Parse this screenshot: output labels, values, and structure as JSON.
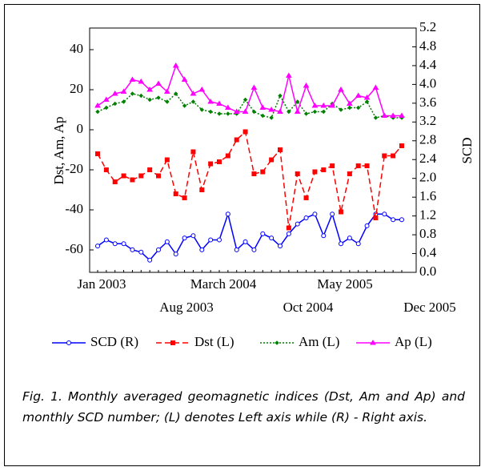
{
  "chart_data": {
    "type": "line",
    "y_label": "Dst, Am, Ap",
    "y2_label": "SCD",
    "caption": "Fig. 1. Monthly averaged geomagnetic indices (Dst, Am and Ap) and monthly SCD number; (L) denotes Left axis while (R) - Right axis.",
    "categories": [
      "Jan 2003",
      null,
      null,
      null,
      null,
      null,
      null,
      "Aug 2003",
      null,
      null,
      null,
      null,
      null,
      null,
      "March 2004",
      null,
      null,
      null,
      null,
      null,
      null,
      "Oct 2004",
      null,
      null,
      null,
      null,
      null,
      null,
      "May 2005",
      null,
      null,
      null,
      null,
      null,
      null,
      "Dec 2005"
    ],
    "ylim": [
      -71.2,
      50.8
    ],
    "yticks": [
      -60,
      -40,
      -20,
      0,
      20,
      40
    ],
    "y2lim": [
      0,
      5.2
    ],
    "y2ticks": [
      {
        "value": 0,
        "label": "0.0"
      },
      0.4,
      0.8,
      1.2,
      1.6,
      {
        "value": 2,
        "label": "2.0"
      },
      2.4,
      2.8,
      3.2,
      3.6,
      {
        "value": 4,
        "label": "4.0"
      },
      4.4,
      4.8,
      5.2
    ],
    "grid": false,
    "series": [
      {
        "name": "SCD (R)",
        "color": "#0000ff",
        "axis": "y2",
        "marker": "circle",
        "dash": "solid",
        "values": [
          0.56,
          0.69,
          0.61,
          0.61,
          0.48,
          0.43,
          0.26,
          0.48,
          0.65,
          0.39,
          0.73,
          0.78,
          0.48,
          0.69,
          0.69,
          1.24,
          0.48,
          0.65,
          0.48,
          0.82,
          0.73,
          0.56,
          0.82,
          1.03,
          1.16,
          1.24,
          0.78,
          1.24,
          0.61,
          0.73,
          0.61,
          0.99,
          1.24,
          1.24,
          1.12,
          1.12
        ]
      },
      {
        "name": "Dst (L)",
        "color": "#ff0000",
        "marker": "square",
        "dash": "dashed",
        "values": [
          -12,
          -20,
          -26,
          -23,
          -25,
          -23,
          -20,
          -23,
          -15,
          -32,
          -34,
          -11,
          -30,
          -17,
          -16,
          -13,
          -5,
          -1,
          -22,
          -21,
          -15,
          -10,
          -49,
          -22,
          -34,
          -21,
          -20,
          -18,
          -41,
          -22,
          -18,
          -18,
          -44,
          -13,
          -13,
          -8
        ]
      },
      {
        "name": "Am (L)",
        "color": "#008000",
        "marker": "diamond",
        "dash": "dotted",
        "values": [
          9,
          11,
          13,
          14,
          18,
          17,
          15,
          16,
          14,
          18,
          12,
          14,
          10,
          9,
          8,
          8,
          8,
          15,
          9,
          7,
          6,
          17,
          9,
          14,
          8,
          9,
          9,
          13,
          10,
          11,
          11,
          14,
          6,
          7,
          6,
          6
        ]
      },
      {
        "name": "Ap (L)",
        "color": "#ff00ff",
        "marker": "triangle",
        "dash": "solid",
        "values": [
          12,
          15,
          18,
          19,
          25,
          24,
          20,
          23,
          19,
          32,
          25,
          18,
          20,
          14,
          13,
          11,
          9,
          9,
          21,
          11,
          10,
          9,
          27,
          9,
          22,
          12,
          12,
          12,
          20,
          13,
          17,
          16,
          21,
          7,
          7,
          7
        ]
      }
    ]
  }
}
